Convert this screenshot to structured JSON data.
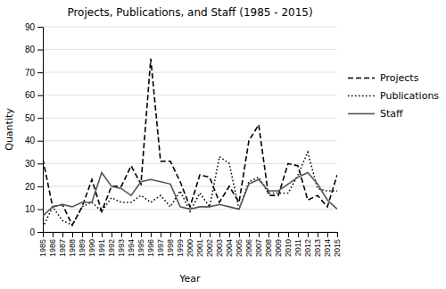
{
  "chart_data": {
    "type": "line",
    "title": "Projects, Publications, and Staff (1985 - 2015)",
    "xlabel": "Year",
    "ylabel": "Quantity",
    "x": [
      1985,
      1986,
      1987,
      1988,
      1989,
      1990,
      1991,
      1992,
      1993,
      1994,
      1995,
      1996,
      1997,
      1998,
      1999,
      2000,
      2001,
      2002,
      2003,
      2004,
      2005,
      2006,
      2007,
      2008,
      2009,
      2010,
      2011,
      2012,
      2013,
      2014,
      2015
    ],
    "series": [
      {
        "name": "Projects",
        "color": "#000000",
        "line_style": "dashed",
        "values": [
          32,
          11,
          12,
          3,
          11,
          23,
          9,
          20,
          20,
          29,
          21,
          76,
          31,
          31,
          22,
          11,
          25,
          24,
          13,
          20,
          13,
          40,
          47,
          16,
          16,
          30,
          29,
          14,
          16,
          11,
          25
        ]
      },
      {
        "name": "Publications",
        "color": "#000000",
        "line_style": "dotted",
        "values": [
          2,
          11,
          5,
          3,
          11,
          13,
          9,
          15,
          13,
          13,
          16,
          13,
          16,
          11,
          18,
          9,
          17,
          11,
          33,
          30,
          10,
          22,
          24,
          17,
          17,
          17,
          25,
          35,
          19,
          18,
          18
        ]
      },
      {
        "name": "Staff",
        "color": "#555555",
        "line_style": "solid",
        "values": [
          7,
          11,
          12,
          11,
          13,
          13,
          26,
          20,
          19,
          16,
          22,
          23,
          22,
          21,
          11,
          10,
          11,
          11,
          12,
          11,
          10,
          21,
          23,
          18,
          18,
          21,
          24,
          26,
          21,
          14,
          10
        ]
      }
    ],
    "xlim": [
      1985,
      2015
    ],
    "xticks": [
      1985,
      1986,
      1987,
      1988,
      1989,
      1990,
      1991,
      1992,
      1993,
      1994,
      1995,
      1996,
      1997,
      1998,
      1999,
      2000,
      2001,
      2002,
      2003,
      2004,
      2005,
      2006,
      2007,
      2008,
      2009,
      2010,
      2011,
      2012,
      2013,
      2014,
      2015
    ],
    "ylim": [
      0,
      90
    ],
    "yticks": [
      0,
      10,
      20,
      30,
      40,
      50,
      60,
      70,
      80,
      90
    ],
    "grid": "y",
    "legend": "right"
  }
}
